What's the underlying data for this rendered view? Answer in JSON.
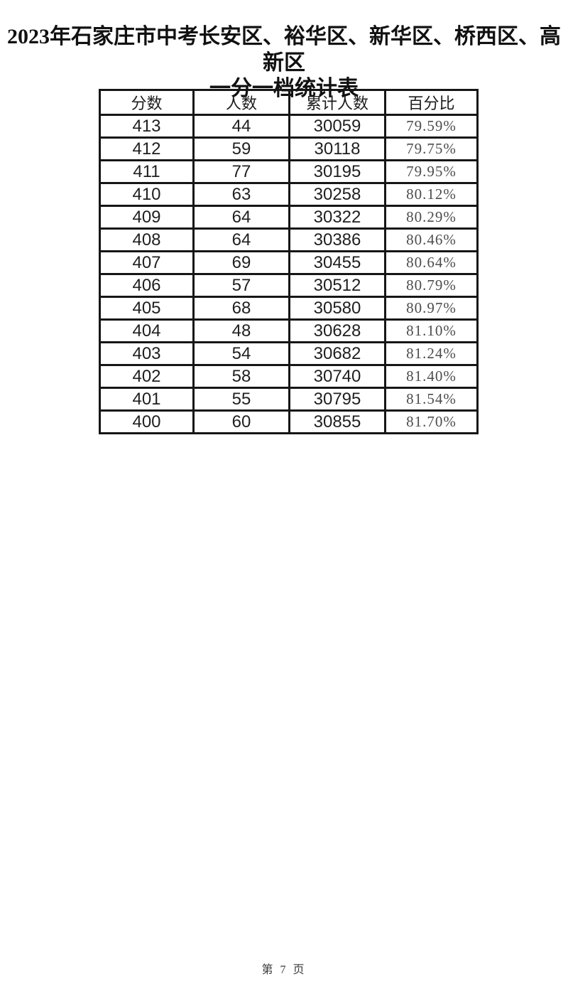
{
  "page": {
    "title_line1": "2023年石家庄市中考长安区、裕华区、新华区、桥西区、高新区",
    "title_line2": "一分一档统计表",
    "footer": "第 7 页"
  },
  "colors": {
    "background": "#ffffff",
    "border": "#161616",
    "text_primary": "#1f1f1f",
    "text_percent": "#4d4d4d"
  },
  "table": {
    "headers": [
      "分数",
      "人数",
      "累计人数",
      "百分比"
    ],
    "rows": [
      {
        "score": "413",
        "count": "44",
        "cumulative": "30059",
        "percent": "79.59%"
      },
      {
        "score": "412",
        "count": "59",
        "cumulative": "30118",
        "percent": "79.75%"
      },
      {
        "score": "411",
        "count": "77",
        "cumulative": "30195",
        "percent": "79.95%"
      },
      {
        "score": "410",
        "count": "63",
        "cumulative": "30258",
        "percent": "80.12%"
      },
      {
        "score": "409",
        "count": "64",
        "cumulative": "30322",
        "percent": "80.29%"
      },
      {
        "score": "408",
        "count": "64",
        "cumulative": "30386",
        "percent": "80.46%"
      },
      {
        "score": "407",
        "count": "69",
        "cumulative": "30455",
        "percent": "80.64%"
      },
      {
        "score": "406",
        "count": "57",
        "cumulative": "30512",
        "percent": "80.79%"
      },
      {
        "score": "405",
        "count": "68",
        "cumulative": "30580",
        "percent": "80.97%"
      },
      {
        "score": "404",
        "count": "48",
        "cumulative": "30628",
        "percent": "81.10%"
      },
      {
        "score": "403",
        "count": "54",
        "cumulative": "30682",
        "percent": "81.24%"
      },
      {
        "score": "402",
        "count": "58",
        "cumulative": "30740",
        "percent": "81.40%"
      },
      {
        "score": "401",
        "count": "55",
        "cumulative": "30795",
        "percent": "81.54%"
      },
      {
        "score": "400",
        "count": "60",
        "cumulative": "30855",
        "percent": "81.70%"
      }
    ]
  }
}
